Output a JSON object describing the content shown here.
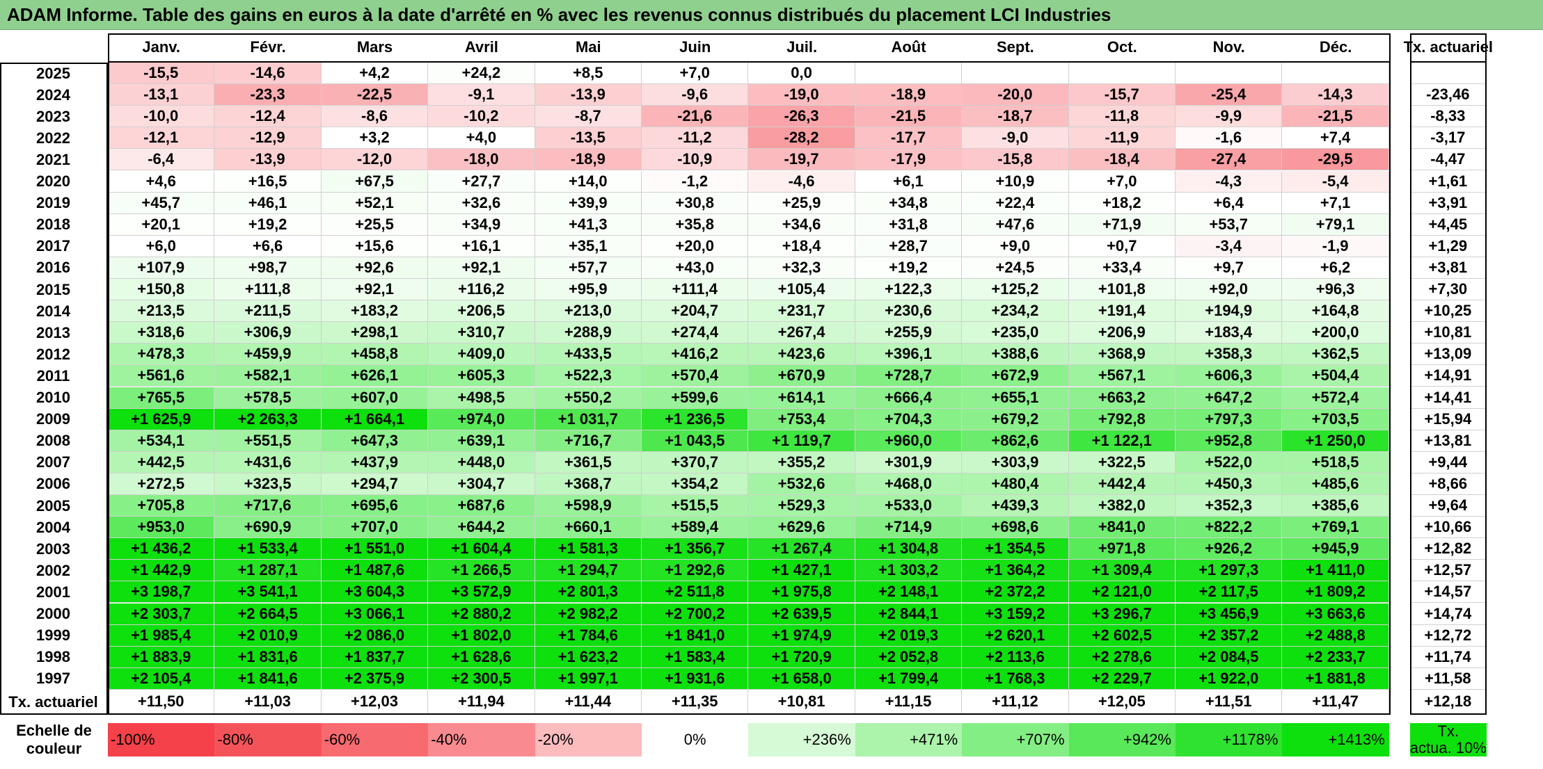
{
  "title": "ADAM Informe. Table des gains en euros à la date d'arrêté en % avec les revenus connus distribués du placement LCI Industries",
  "months": [
    "Janv.",
    "Févr.",
    "Mars",
    "Avril",
    "Mai",
    "Juin",
    "Juil.",
    "Août",
    "Sept.",
    "Oct.",
    "Nov.",
    "Déc."
  ],
  "rate_header": "Tx. actuariel",
  "rows": [
    {
      "year": "2025",
      "values": [
        "-15,5",
        "-14,6",
        "+4,2",
        "+24,2",
        "+8,5",
        "+7,0",
        "0,0",
        "",
        "",
        "",
        "",
        ""
      ],
      "rate": ""
    },
    {
      "year": "2024",
      "values": [
        "-13,1",
        "-23,3",
        "-22,5",
        "-9,1",
        "-13,9",
        "-9,6",
        "-19,0",
        "-18,9",
        "-20,0",
        "-15,7",
        "-25,4",
        "-14,3"
      ],
      "rate": "-23,46"
    },
    {
      "year": "2023",
      "values": [
        "-10,0",
        "-12,4",
        "-8,6",
        "-10,2",
        "-8,7",
        "-21,6",
        "-26,3",
        "-21,5",
        "-18,7",
        "-11,8",
        "-9,9",
        "-21,5"
      ],
      "rate": "-8,33"
    },
    {
      "year": "2022",
      "values": [
        "-12,1",
        "-12,9",
        "+3,2",
        "+4,0",
        "-13,5",
        "-11,2",
        "-28,2",
        "-17,7",
        "-9,0",
        "-11,9",
        "-1,6",
        "+7,4"
      ],
      "rate": "-3,17"
    },
    {
      "year": "2021",
      "values": [
        "-6,4",
        "-13,9",
        "-12,0",
        "-18,0",
        "-18,9",
        "-10,9",
        "-19,7",
        "-17,9",
        "-15,8",
        "-18,4",
        "-27,4",
        "-29,5"
      ],
      "rate": "-4,47"
    },
    {
      "year": "2020",
      "values": [
        "+4,6",
        "+16,5",
        "+67,5",
        "+27,7",
        "+14,0",
        "-1,2",
        "-4,6",
        "+6,1",
        "+10,9",
        "+7,0",
        "-4,3",
        "-5,4"
      ],
      "rate": "+1,61"
    },
    {
      "year": "2019",
      "values": [
        "+45,7",
        "+46,1",
        "+52,1",
        "+32,6",
        "+39,9",
        "+30,8",
        "+25,9",
        "+34,8",
        "+22,4",
        "+18,2",
        "+6,4",
        "+7,1"
      ],
      "rate": "+3,91"
    },
    {
      "year": "2018",
      "values": [
        "+20,1",
        "+19,2",
        "+25,5",
        "+34,9",
        "+41,3",
        "+35,8",
        "+34,6",
        "+31,8",
        "+47,6",
        "+71,9",
        "+53,7",
        "+79,1"
      ],
      "rate": "+4,45"
    },
    {
      "year": "2017",
      "values": [
        "+6,0",
        "+6,6",
        "+15,6",
        "+16,1",
        "+35,1",
        "+20,0",
        "+18,4",
        "+28,7",
        "+9,0",
        "+0,7",
        "-3,4",
        "-1,9"
      ],
      "rate": "+1,29"
    },
    {
      "year": "2016",
      "values": [
        "+107,9",
        "+98,7",
        "+92,6",
        "+92,1",
        "+57,7",
        "+43,0",
        "+32,3",
        "+19,2",
        "+24,5",
        "+33,4",
        "+9,7",
        "+6,2"
      ],
      "rate": "+3,81"
    },
    {
      "year": "2015",
      "values": [
        "+150,8",
        "+111,8",
        "+92,1",
        "+116,2",
        "+95,9",
        "+111,4",
        "+105,4",
        "+122,3",
        "+125,2",
        "+101,8",
        "+92,0",
        "+96,3"
      ],
      "rate": "+7,30"
    },
    {
      "year": "2014",
      "values": [
        "+213,5",
        "+211,5",
        "+183,2",
        "+206,5",
        "+213,0",
        "+204,7",
        "+231,7",
        "+230,6",
        "+234,2",
        "+191,4",
        "+194,9",
        "+164,8"
      ],
      "rate": "+10,25"
    },
    {
      "year": "2013",
      "values": [
        "+318,6",
        "+306,9",
        "+298,1",
        "+310,7",
        "+288,9",
        "+274,4",
        "+267,4",
        "+255,9",
        "+235,0",
        "+206,9",
        "+183,4",
        "+200,0"
      ],
      "rate": "+10,81"
    },
    {
      "year": "2012",
      "values": [
        "+478,3",
        "+459,9",
        "+458,8",
        "+409,0",
        "+433,5",
        "+416,2",
        "+423,6",
        "+396,1",
        "+388,6",
        "+368,9",
        "+358,3",
        "+362,5"
      ],
      "rate": "+13,09"
    },
    {
      "year": "2011",
      "values": [
        "+561,6",
        "+582,1",
        "+626,1",
        "+605,3",
        "+522,3",
        "+570,4",
        "+670,9",
        "+728,7",
        "+672,9",
        "+567,1",
        "+606,3",
        "+504,4"
      ],
      "rate": "+14,91"
    },
    {
      "year": "2010",
      "values": [
        "+765,5",
        "+578,5",
        "+607,0",
        "+498,5",
        "+550,2",
        "+599,6",
        "+614,1",
        "+666,4",
        "+655,1",
        "+663,2",
        "+647,2",
        "+572,4"
      ],
      "rate": "+14,41"
    },
    {
      "year": "2009",
      "values": [
        "+1 625,9",
        "+2 263,3",
        "+1 664,1",
        "+974,0",
        "+1 031,7",
        "+1 236,5",
        "+753,4",
        "+704,3",
        "+679,2",
        "+792,8",
        "+797,3",
        "+703,5"
      ],
      "rate": "+15,94"
    },
    {
      "year": "2008",
      "values": [
        "+534,1",
        "+551,5",
        "+647,3",
        "+639,1",
        "+716,7",
        "+1 043,5",
        "+1 119,7",
        "+960,0",
        "+862,6",
        "+1 122,1",
        "+952,8",
        "+1 250,0"
      ],
      "rate": "+13,81"
    },
    {
      "year": "2007",
      "values": [
        "+442,5",
        "+431,6",
        "+437,9",
        "+448,0",
        "+361,5",
        "+370,7",
        "+355,2",
        "+301,9",
        "+303,9",
        "+322,5",
        "+522,0",
        "+518,5"
      ],
      "rate": "+9,44"
    },
    {
      "year": "2006",
      "values": [
        "+272,5",
        "+323,5",
        "+294,7",
        "+304,7",
        "+368,7",
        "+354,2",
        "+532,6",
        "+468,0",
        "+480,4",
        "+442,4",
        "+450,3",
        "+485,6"
      ],
      "rate": "+8,66"
    },
    {
      "year": "2005",
      "values": [
        "+705,8",
        "+717,6",
        "+695,6",
        "+687,6",
        "+598,9",
        "+515,5",
        "+529,3",
        "+533,0",
        "+439,3",
        "+382,0",
        "+352,3",
        "+385,6"
      ],
      "rate": "+9,64"
    },
    {
      "year": "2004",
      "values": [
        "+953,0",
        "+690,9",
        "+707,0",
        "+644,2",
        "+660,1",
        "+589,4",
        "+629,6",
        "+714,9",
        "+698,6",
        "+841,0",
        "+822,2",
        "+769,1"
      ],
      "rate": "+10,66"
    },
    {
      "year": "2003",
      "values": [
        "+1 436,2",
        "+1 533,4",
        "+1 551,0",
        "+1 604,4",
        "+1 581,3",
        "+1 356,7",
        "+1 267,4",
        "+1 304,8",
        "+1 354,5",
        "+971,8",
        "+926,2",
        "+945,9"
      ],
      "rate": "+12,82"
    },
    {
      "year": "2002",
      "values": [
        "+1 442,9",
        "+1 287,1",
        "+1 487,6",
        "+1 266,5",
        "+1 294,7",
        "+1 292,6",
        "+1 427,1",
        "+1 303,2",
        "+1 364,2",
        "+1 309,4",
        "+1 297,3",
        "+1 411,0"
      ],
      "rate": "+12,57"
    },
    {
      "year": "2001",
      "values": [
        "+3 198,7",
        "+3 541,1",
        "+3 604,3",
        "+3 572,9",
        "+2 801,3",
        "+2 511,8",
        "+1 975,8",
        "+2 148,1",
        "+2 372,2",
        "+2 121,0",
        "+2 117,5",
        "+1 809,2"
      ],
      "rate": "+14,57"
    },
    {
      "year": "2000",
      "values": [
        "+2 303,7",
        "+2 664,5",
        "+3 066,1",
        "+2 880,2",
        "+2 982,2",
        "+2 700,2",
        "+2 639,5",
        "+2 844,1",
        "+3 159,2",
        "+3 296,7",
        "+3 456,9",
        "+3 663,6"
      ],
      "rate": "+14,74"
    },
    {
      "year": "1999",
      "values": [
        "+1 985,4",
        "+2 010,9",
        "+2 086,0",
        "+1 802,0",
        "+1 784,6",
        "+1 841,0",
        "+1 974,9",
        "+2 019,3",
        "+2 620,1",
        "+2 602,5",
        "+2 357,2",
        "+2 488,8"
      ],
      "rate": "+12,72"
    },
    {
      "year": "1998",
      "values": [
        "+1 883,9",
        "+1 831,6",
        "+1 837,7",
        "+1 628,6",
        "+1 623,2",
        "+1 583,4",
        "+1 720,9",
        "+2 052,8",
        "+2 113,6",
        "+2 278,6",
        "+2 084,5",
        "+2 233,7"
      ],
      "rate": "+11,74"
    },
    {
      "year": "1997",
      "values": [
        "+2 105,4",
        "+1 841,6",
        "+2 375,9",
        "+2 300,5",
        "+1 997,1",
        "+1 931,6",
        "+1 658,0",
        "+1 799,4",
        "+1 768,3",
        "+2 229,7",
        "+1 922,0",
        "+1 881,8"
      ],
      "rate": "+11,58"
    }
  ],
  "footer": {
    "label": "Tx. actuariel",
    "values": [
      "+11,50",
      "+11,03",
      "+12,03",
      "+11,94",
      "+11,44",
      "+11,35",
      "+10,81",
      "+11,15",
      "+11,12",
      "+12,05",
      "+11,51",
      "+11,47"
    ],
    "rate": "+12,18"
  },
  "scale": {
    "label": [
      "Echelle de",
      "couleur"
    ],
    "items": [
      {
        "text": "-100%",
        "color": "#f4414a"
      },
      {
        "text": "-80%",
        "color": "#f5535a"
      },
      {
        "text": "-60%",
        "color": "#f76a70"
      },
      {
        "text": "-40%",
        "color": "#f98a8f"
      },
      {
        "text": "-20%",
        "color": "#fcbcbe"
      },
      {
        "text": "0%",
        "color": "#ffffff"
      },
      {
        "text": "+236%",
        "color": "#d6f9d6"
      },
      {
        "text": "+471%",
        "color": "#acf3ac"
      },
      {
        "text": "+707%",
        "color": "#83ee83"
      },
      {
        "text": "+942%",
        "color": "#59e859"
      },
      {
        "text": "+1178%",
        "color": "#30e230"
      },
      {
        "text": "+1413%",
        "color": "#0ee00e"
      }
    ],
    "end_label": [
      "Tx.",
      "actua. 10%"
    ],
    "end_color": "#0ee00e"
  }
}
